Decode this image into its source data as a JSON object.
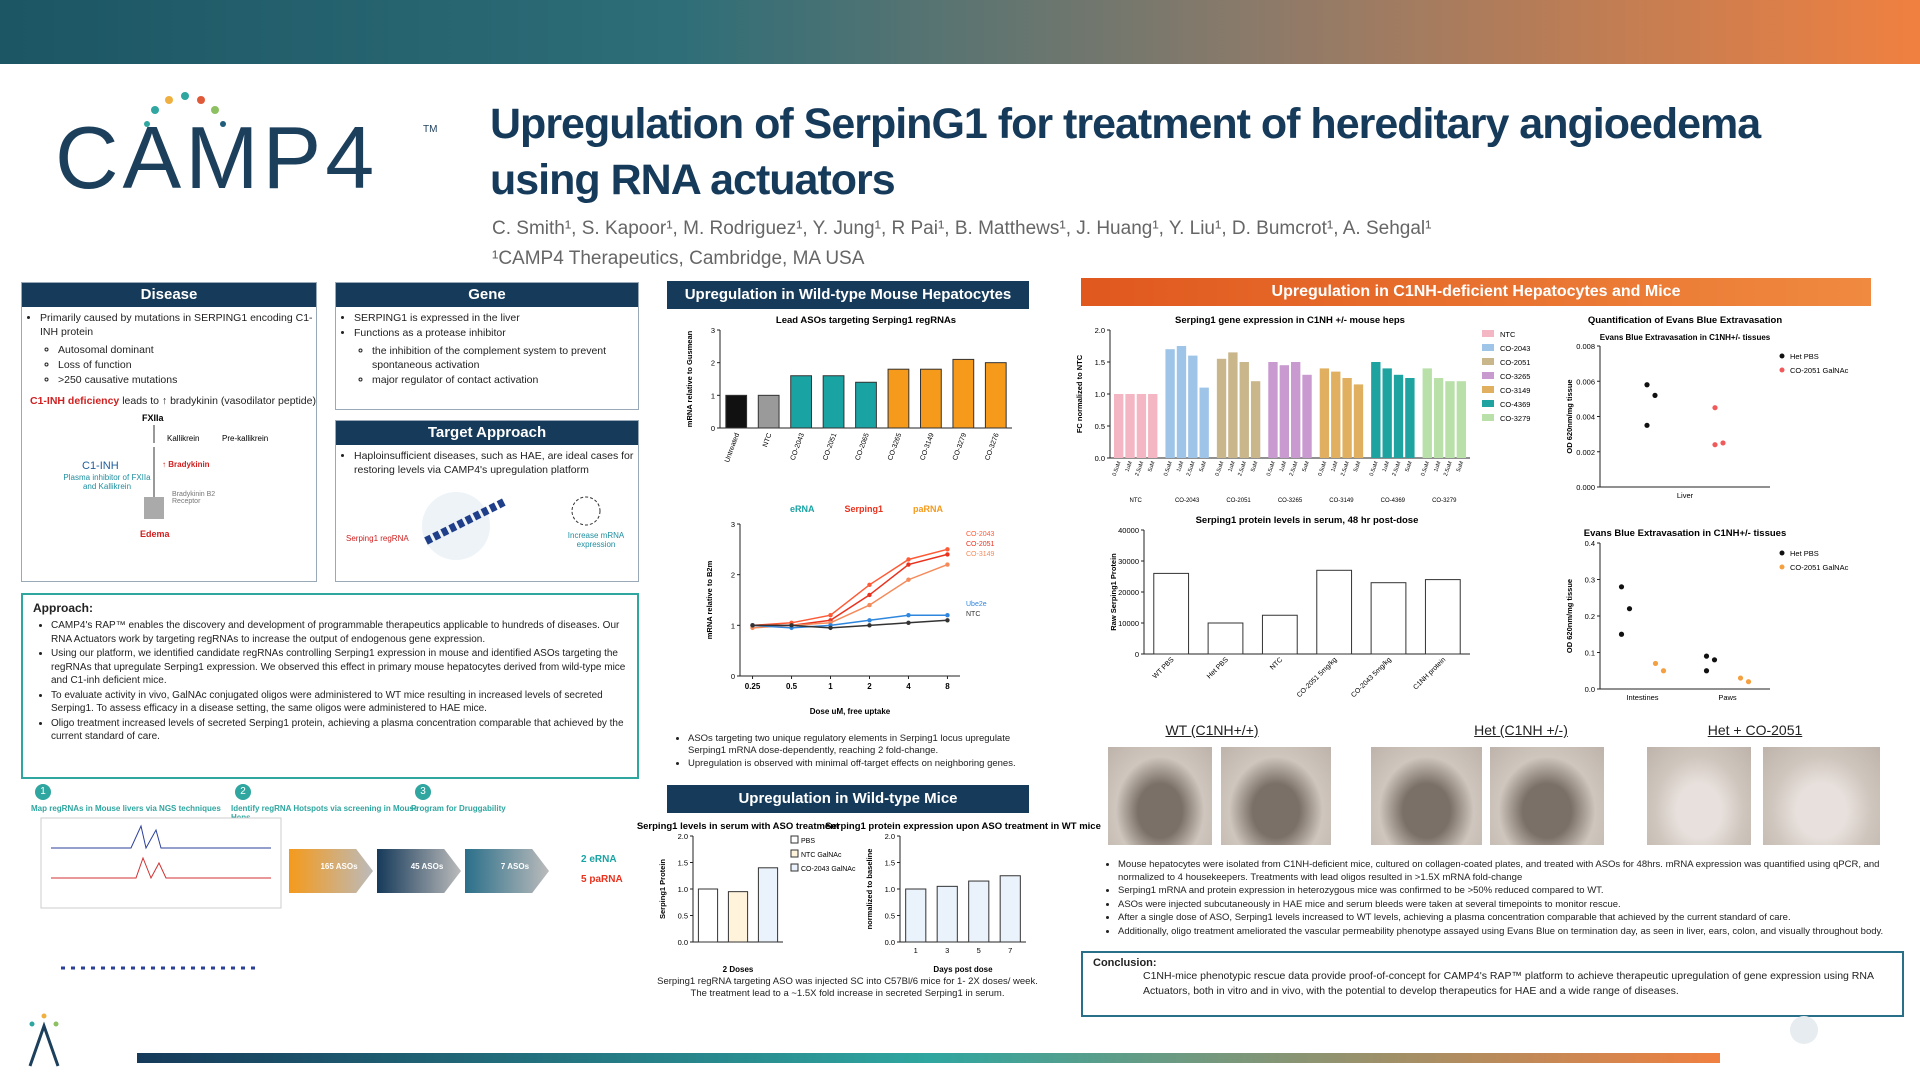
{
  "header": {
    "logo": "CAMP4",
    "logo_tm": "TM",
    "title": "Upregulation of SerpinG1 for treatment of hereditary angioedema using RNA actuators",
    "authors": "C. Smith¹, S. Kapoor¹, M. Rodriguez¹, Y. Jung¹, R Pai¹, B. Matthews¹, J. Huang¹, Y. Liu¹, D. Bumcrot¹, A. Sehgal¹",
    "affiliation": "¹CAMP4 Therapeutics, Cambridge, MA USA"
  },
  "disease": {
    "heading": "Disease",
    "bullets": [
      "Primarily caused by mutations in SERPING1 encoding C1-INH protein"
    ],
    "sub": [
      "Autosomal dominant",
      "Loss of function",
      ">250 causative mutations"
    ],
    "deficiency_lead": "C1-INH deficiency",
    "deficiency_rest": "leads to ↑ bradykinin (vasodilator peptide)",
    "diagram": {
      "fxiia": "FXIIa",
      "kallikrein": "Kallikrein",
      "prekallikrein": "Pre-kallikrein",
      "c1inh": "C1-INH",
      "inhibitor": "Plasma inhibitor of FXIIa and Kallikrein",
      "bradykinin": "↑ Bradykinin",
      "receptor": "Bradykinin B2 Receptor",
      "edema": "Edema"
    }
  },
  "gene": {
    "heading": "Gene",
    "bullets": [
      "SERPING1 is expressed in the liver",
      "Functions as a protease inhibitor"
    ],
    "sub": [
      "the inhibition of the complement system to prevent spontaneous activation",
      "major regulator of contact activation"
    ]
  },
  "target": {
    "heading": "Target Approach",
    "bullets": [
      "Haploinsufficient diseases, such as HAE, are ideal cases for restoring levels via CAMP4's upregulation platform"
    ],
    "regrna": "Serping1 regRNA",
    "increase": "Increase mRNA expression"
  },
  "approach": {
    "heading": "Approach:",
    "bullets": [
      "CAMP4's RAP™ enables the discovery and development of programmable therapeutics applicable to hundreds of diseases. Our RNA Actuators work by targeting regRNAs to increase the output of endogenous gene expression.",
      "Using our platform, we identified candidate regRNAs controlling Serping1 expression in mouse and identified ASOs targeting the regRNAs that upregulate Serping1 expression. We observed this effect in primary mouse hepatocytes derived from wild-type mice and C1-inh deficient mice.",
      "To evaluate activity in vivo, GalNAc conjugated oligos were administered to WT mice resulting in increased levels of secreted Serping1. To assess efficacy in a disease setting, the same oligos were administered to HAE mice.",
      "Oligo treatment increased levels of secreted Serping1 protein, achieving a plasma concentration comparable that achieved by the current standard of care."
    ]
  },
  "workflow": {
    "steps": [
      {
        "num": "1",
        "text": "Map regRNAs in Mouse livers via NGS techniques"
      },
      {
        "num": "2",
        "text": "Identify regRNA Hotspots via screening in Mouse Heps"
      },
      {
        "num": "3",
        "text": "Program for Druggability"
      }
    ],
    "funnel": [
      "165 ASOs",
      "45 ASOs",
      "7 ASOs"
    ],
    "results": [
      "2 eRNA",
      "5 paRNA"
    ]
  },
  "middle": {
    "heading1": "Upregulation in Wild-type Mouse Hepatocytes",
    "legend_erna": "eRNA",
    "legend_gene": "Serping1",
    "legend_parna": "paRNA",
    "bullets": [
      "ASOs targeting two unique regulatory elements in Serping1 locus upregulate Serping1 mRNA dose-dependently, reaching 2 fold-change.",
      "Upregulation is observed with minimal off-target effects on neighboring genes."
    ],
    "heading2": "Upregulation in Wild-type Mice",
    "caption": "Serping1 regRNA targeting ASO was injected SC into C57Bl/6 mice for 1- 2X doses/ week. The treatment lead to a ~1.5X fold increase in secreted Serping1 in serum."
  },
  "right": {
    "heading": "Upregulation in C1NH-deficient Hepatocytes and Mice",
    "photo_labels": [
      "WT (C1NH+/+)",
      "Het (C1NH +/-)",
      "Het + CO-2051"
    ],
    "bullets": [
      "Mouse hepatocytes were isolated from C1NH-deficient mice, cultured on collagen-coated plates, and treated with ASOs for 48hrs. mRNA expression was quantified using qPCR, and normalized to 4 housekeepers. Treatments with lead oligos resulted in >1.5X mRNA fold-change",
      "Serping1 mRNA and protein expression in heterozygous mice was confirmed to be >50% reduced compared to WT.",
      "ASOs were injected subcutaneously in HAE mice and serum bleeds were taken at several timepoints to monitor rescue.",
      "After a single dose of ASO, Serping1 levels increased to WT levels, achieving a plasma concentration comparable that achieved by the current standard of care.",
      "Additionally, oligo treatment ameliorated the vascular permeability phenotype assayed using Evans Blue on termination day, as seen in liver, ears, colon, and visually throughout body."
    ],
    "conclusion_heading": "Conclusion:",
    "conclusion": "C1NH-mice phenotypic rescue data provide proof-of-concept for CAMP4's RAP™ platform to achieve therapeutic upregulation of gene expression using RNA Actuators, both in vitro and in vivo, with the potential to develop therapeutics for HAE and a wide range of diseases."
  },
  "chart_data": [
    {
      "type": "bar",
      "title": "Lead ASOs targeting Serping1 regRNAs",
      "ylabel": "mRNA relative to Gusmean",
      "categories": [
        "Untreated",
        "NTC",
        "CO-2043",
        "CO-2051",
        "CO-2065",
        "CO-3265",
        "CO-3149",
        "CO-3279",
        "CO-3276"
      ],
      "values": [
        1.0,
        1.0,
        1.6,
        1.6,
        1.4,
        1.8,
        1.8,
        2.1,
        2.0
      ],
      "colors": [
        "#111111",
        "#9a9a9a",
        "#1aa3a3",
        "#1aa3a3",
        "#1aa3a3",
        "#f59a1b",
        "#f59a1b",
        "#f59a1b",
        "#f59a1b"
      ],
      "ylim": [
        0,
        3
      ],
      "yticks": [
        0,
        1,
        2,
        3
      ]
    },
    {
      "type": "line",
      "xlabel": "Dose uM, free uptake",
      "ylabel": "mRNA relative to B2m",
      "x": [
        0.25,
        0.5,
        1,
        2,
        4,
        8
      ],
      "xlim": [
        0.2,
        10
      ],
      "xticks": [
        0.25,
        0.5,
        1,
        2,
        4,
        8
      ],
      "xlog": true,
      "ylim": [
        0,
        3
      ],
      "yticks": [
        0,
        1,
        2,
        3
      ],
      "series": [
        {
          "name": "CO-2043",
          "color": "#ff5a36",
          "values": [
            1.0,
            1.05,
            1.2,
            1.8,
            2.3,
            2.5
          ]
        },
        {
          "name": "CO-2051",
          "color": "#e8321e",
          "values": [
            1.0,
            1.0,
            1.1,
            1.6,
            2.2,
            2.4
          ]
        },
        {
          "name": "CO-3149",
          "color": "#f58a5a",
          "values": [
            0.95,
            1.0,
            1.05,
            1.4,
            1.9,
            2.2
          ]
        },
        {
          "name": "Ube2e",
          "color": "#2e86de",
          "values": [
            1.0,
            0.95,
            1.0,
            1.1,
            1.2,
            1.2
          ]
        },
        {
          "name": "NTC",
          "color": "#333333",
          "values": [
            1.0,
            1.0,
            0.95,
            1.0,
            1.05,
            1.1
          ]
        }
      ]
    },
    {
      "type": "bar",
      "title": "Serping1 levels in serum with ASO treatment",
      "xlabel": "2 Doses",
      "ylabel": "Serping1 Protein",
      "categories": [
        "PBS",
        "NTC GalNAc",
        "CO-2043 GalNAc"
      ],
      "values": [
        1.0,
        0.95,
        1.4
      ],
      "colors": [
        "#ffffff",
        "#fff3dc",
        "#eaf2fb"
      ],
      "ylim": [
        0,
        2
      ],
      "yticks": [
        {
          "value": 0,
          "label": "0.0"
        },
        {
          "value": 0.5,
          "label": "0.5"
        },
        {
          "value": 1,
          "label": "1.0"
        },
        {
          "value": 1.5,
          "label": "1.5"
        },
        {
          "value": 2,
          "label": "2.0"
        }
      ]
    },
    {
      "type": "bar",
      "title": "Serping1 protein expression upon ASO treatment in WT mice",
      "xlabel": "Days post dose",
      "ylabel": "normalized to baseline",
      "categories": [
        "1",
        "3",
        "5",
        "7"
      ],
      "values": [
        1.0,
        1.05,
        1.15,
        1.25
      ],
      "color": "#eaf2fb",
      "ylim": [
        0,
        2
      ],
      "yticks": [
        {
          "value": 0,
          "label": "0.0"
        },
        {
          "value": 0.5,
          "label": "0.5"
        },
        {
          "value": 1,
          "label": "1.0"
        },
        {
          "value": 1.5,
          "label": "1.5"
        },
        {
          "value": 2,
          "label": "2.0"
        }
      ]
    },
    {
      "type": "grouped_bar",
      "title": "Serping1 gene expression in C1NH +/- mouse heps",
      "ylabel": "FC normalized to NTC",
      "categories": [
        "0.5uM",
        "1uM",
        "2.5uM",
        "5uM"
      ],
      "ylim": [
        0,
        2
      ],
      "yticks": [
        {
          "value": 0,
          "label": "0.0"
        },
        {
          "value": 0.5,
          "label": "0.5"
        },
        {
          "value": 1,
          "label": "1.0"
        },
        {
          "value": 1.5,
          "label": "1.5"
        },
        {
          "value": 2,
          "label": "2.0"
        }
      ],
      "series": [
        {
          "name": "NTC",
          "color": "#f4b6c2",
          "values": [
            1.0,
            1.0,
            1.0,
            1.0
          ]
        },
        {
          "name": "CO-2043",
          "color": "#9ec5e8",
          "values": [
            1.7,
            1.75,
            1.6,
            1.1
          ]
        },
        {
          "name": "CO-2051",
          "color": "#c9b68a",
          "values": [
            1.55,
            1.65,
            1.5,
            1.2
          ]
        },
        {
          "name": "CO-3265",
          "color": "#c89ad0",
          "values": [
            1.5,
            1.45,
            1.5,
            1.3
          ]
        },
        {
          "name": "CO-3149",
          "color": "#e0b060",
          "values": [
            1.4,
            1.35,
            1.25,
            1.15
          ]
        },
        {
          "name": "CO-4369",
          "color": "#1fa3a0",
          "values": [
            1.5,
            1.4,
            1.3,
            1.25
          ]
        },
        {
          "name": "CO-3279",
          "color": "#b8e0a8",
          "values": [
            1.4,
            1.25,
            1.2,
            1.2
          ]
        }
      ]
    },
    {
      "type": "bar",
      "title": "Serping1 protein levels in serum, 48 hr post-dose",
      "ylabel": "Raw Serping1 Protein",
      "categories": [
        "WT PBS",
        "Het PBS",
        "NTC",
        "CO-2051 5mg/kg",
        "CO-2043 5mg/kg",
        "C1NH protein"
      ],
      "values": [
        26000,
        10000,
        12500,
        27000,
        23000,
        24000
      ],
      "color": "#ffffff",
      "ylim": [
        0,
        40000
      ],
      "yticks": [
        0,
        10000,
        20000,
        30000,
        40000
      ]
    },
    {
      "type": "strip",
      "title": "Quantification of Evans Blue Extravasation",
      "subtitle": "Evans Blue Extravasation in C1NH+/- tissues",
      "ylabel": "OD 620nm/mg tissue",
      "categories": [
        "Liver"
      ],
      "ylim": [
        0,
        0.008
      ],
      "yticks": [
        {
          "value": 0,
          "label": "0.000"
        },
        {
          "value": 0.002,
          "label": "0.002"
        },
        {
          "value": 0.004,
          "label": "0.004"
        },
        {
          "value": 0.006,
          "label": "0.006"
        },
        {
          "value": 0.008,
          "label": "0.008"
        }
      ],
      "series": [
        {
          "name": "Het PBS",
          "color": "#111111",
          "values": [
            [
              0.0058,
              0.0052,
              0.0035
            ]
          ]
        },
        {
          "name": "CO-2051 GalNAc",
          "color": "#f05a5a",
          "values": [
            [
              0.0045,
              0.0025,
              0.0024
            ]
          ]
        }
      ]
    },
    {
      "type": "strip",
      "title": "Evans Blue Extravasation in C1NH+/- tissues",
      "ylabel": "OD 620nm/mg tissue",
      "categories": [
        "Intestines",
        "Paws"
      ],
      "ylim": [
        0,
        0.4
      ],
      "yticks": [
        {
          "value": 0,
          "label": "0.0"
        },
        {
          "value": 0.1,
          "label": "0.1"
        },
        {
          "value": 0.2,
          "label": "0.2"
        },
        {
          "value": 0.3,
          "label": "0.3"
        },
        {
          "value": 0.4,
          "label": "0.4"
        }
      ],
      "series": [
        {
          "name": "Het PBS",
          "color": "#111111",
          "values": [
            [
              0.28,
              0.22,
              0.15
            ],
            [
              0.09,
              0.08,
              0.05
            ]
          ]
        },
        {
          "name": "CO-2051 GalNAc",
          "color": "#f5a040",
          "values": [
            [
              0.07,
              0.05
            ],
            [
              0.03,
              0.02
            ]
          ]
        }
      ]
    }
  ]
}
